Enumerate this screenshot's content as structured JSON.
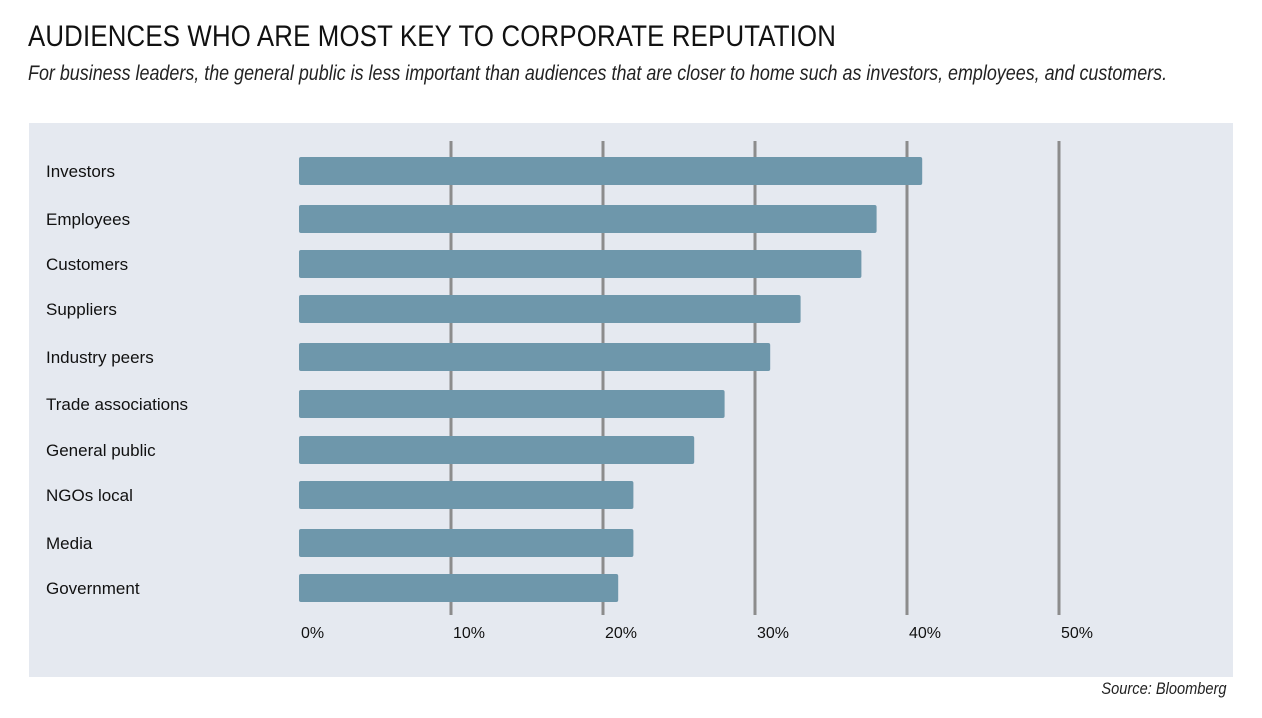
{
  "chart_data": {
    "type": "bar",
    "orientation": "horizontal",
    "title": "AUDIENCES WHO ARE MOST KEY TO CORPORATE REPUTATION",
    "subtitle": "For business leaders, the general public is less important than audiences that are closer to home such as investors, employees, and customers.",
    "categories": [
      "Investors",
      "Employees",
      "Customers",
      "Suppliers",
      "Industry peers",
      "Trade associations",
      "General public",
      "NGOs local",
      "Media",
      "Government"
    ],
    "values": [
      41,
      38,
      37,
      33,
      31,
      28,
      26,
      22,
      22,
      21
    ],
    "unit": "%",
    "xlim": [
      0,
      50
    ],
    "ticks": [
      0,
      10,
      20,
      30,
      40,
      50
    ],
    "tick_labels": [
      "0%",
      "10%",
      "20%",
      "30%",
      "40%",
      "50%"
    ],
    "grid": true,
    "bar_color": "#6e97ab",
    "grid_color": "#8c8c8c",
    "background_color": "#e5e9f0",
    "source": "Source: Bloomberg"
  }
}
